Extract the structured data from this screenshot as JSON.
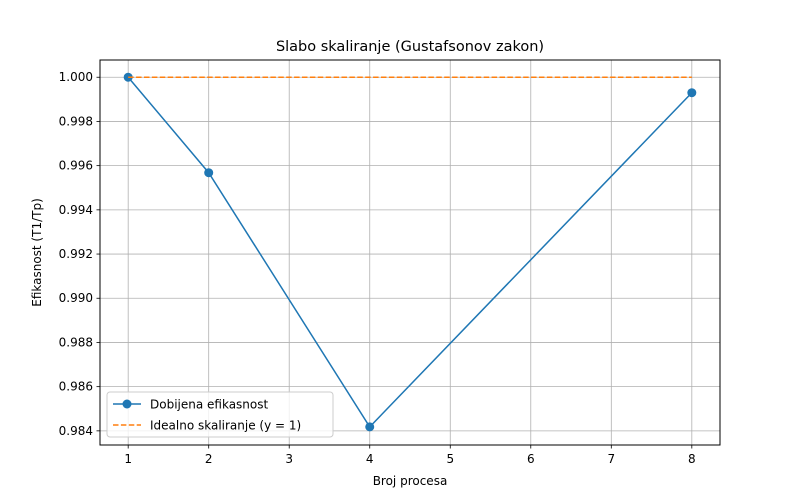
{
  "chart_data": {
    "type": "line",
    "title": "Slabo skaliranje (Gustafsonov zakon)",
    "xlabel": "Broj procesa",
    "ylabel": "Efikasnost (T1/Tp)",
    "x": [
      1,
      2,
      4,
      8
    ],
    "xticks": [
      1,
      2,
      3,
      4,
      5,
      6,
      7,
      8
    ],
    "xlim": [
      0.65,
      8.35
    ],
    "yticks": [
      0.984,
      0.986,
      0.988,
      0.99,
      0.992,
      0.994,
      0.996,
      0.998,
      1.0
    ],
    "ytick_labels": [
      "0.984",
      "0.986",
      "0.988",
      "0.990",
      "0.992",
      "0.994",
      "0.996",
      "0.998",
      "1.000"
    ],
    "ylim": [
      0.98336,
      1.00078
    ],
    "grid": true,
    "legend_position": "lower-left",
    "series": [
      {
        "name": "Dobijena efikasnost",
        "values": [
          1.0,
          0.99568,
          0.98418,
          0.9993
        ],
        "color": "#1f77b4",
        "style": "solid",
        "marker": "circle"
      },
      {
        "name": "Idealno skaliranje (y = 1)",
        "values": [
          1.0,
          1.0,
          1.0,
          1.0
        ],
        "color": "#ff7f0e",
        "style": "dashed",
        "marker": "none"
      }
    ]
  }
}
